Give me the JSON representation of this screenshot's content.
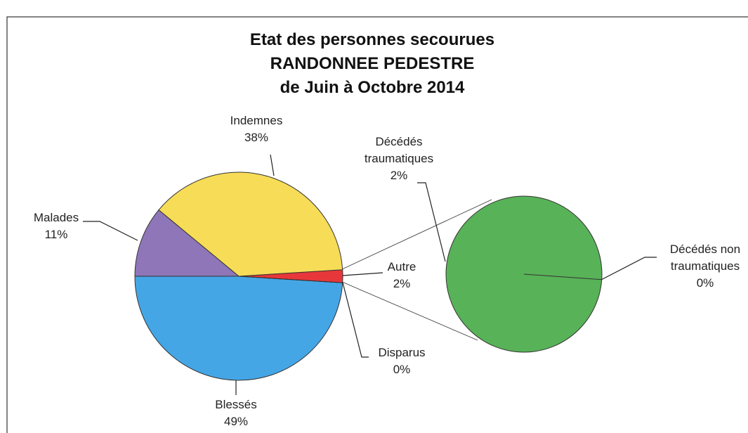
{
  "chart_data": {
    "type": "pie-of-pie",
    "title": [
      "Etat des personnes secourues",
      "RANDONNEE PEDESTRE",
      "de Juin à Octobre 2014"
    ],
    "categories": [
      "Autre",
      "Indemnes",
      "Malades",
      "Blessés",
      "Disparus"
    ],
    "values": [
      2,
      38,
      11,
      49,
      0
    ],
    "value_labels": [
      "2%",
      "38%",
      "11%",
      "49%",
      "0%"
    ],
    "colors": [
      "#e8373a",
      "#f7dc57",
      "#8e76b8",
      "#45a6e6",
      "#3a8fd0"
    ],
    "secondary": {
      "categories": [
        "Décédés traumatiques",
        "Décédés non traumatiques"
      ],
      "values": [
        2,
        0
      ],
      "value_labels": [
        "2%",
        "0%"
      ],
      "colors": [
        "#58b258",
        "#3f9a3f"
      ]
    }
  }
}
